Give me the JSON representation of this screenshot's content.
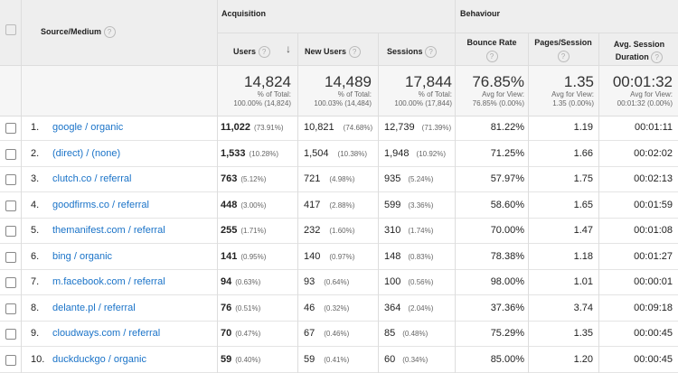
{
  "header": {
    "source_medium": "Source/Medium",
    "acquisition": "Acquisition",
    "behaviour": "Behaviour",
    "users": "Users",
    "new_users": "New Users",
    "sessions": "Sessions",
    "bounce_rate": "Bounce Rate",
    "pages_session": "Pages/Session",
    "avg_session_duration_line1": "Avg. Session",
    "avg_session_duration_line2": "Duration",
    "help_glyph": "?",
    "sort_glyph": "↓"
  },
  "totals": {
    "users": {
      "value": "14,824",
      "l1": "% of Total:",
      "l2": "100.00% (14,824)"
    },
    "new_users": {
      "value": "14,489",
      "l1": "% of Total:",
      "l2": "100.03% (14,484)"
    },
    "sessions": {
      "value": "17,844",
      "l1": "% of Total:",
      "l2": "100.00% (17,844)"
    },
    "bounce_rate": {
      "value": "76.85%",
      "l1": "Avg for View:",
      "l2": "76.85% (0.00%)"
    },
    "pages_session": {
      "value": "1.35",
      "l1": "Avg for View:",
      "l2": "1.35 (0.00%)"
    },
    "avg_duration": {
      "value": "00:01:32",
      "l1": "Avg for View:",
      "l2": "00:01:32 (0.00%)"
    }
  },
  "rows": [
    {
      "idx": "1.",
      "source": "google / organic",
      "users": "11,022",
      "users_pct": "(73.91%)",
      "new_users": "10,821",
      "new_users_pct": "(74.68%)",
      "sessions": "12,739",
      "sessions_pct": "(71.39%)",
      "bounce": "81.22%",
      "pages": "1.19",
      "duration": "00:01:11"
    },
    {
      "idx": "2.",
      "source": "(direct) / (none)",
      "users": "1,533",
      "users_pct": "(10.28%)",
      "new_users": "1,504",
      "new_users_pct": "(10.38%)",
      "sessions": "1,948",
      "sessions_pct": "(10.92%)",
      "bounce": "71.25%",
      "pages": "1.66",
      "duration": "00:02:02"
    },
    {
      "idx": "3.",
      "source": "clutch.co / referral",
      "users": "763",
      "users_pct": "(5.12%)",
      "new_users": "721",
      "new_users_pct": "(4.98%)",
      "sessions": "935",
      "sessions_pct": "(5.24%)",
      "bounce": "57.97%",
      "pages": "1.75",
      "duration": "00:02:13"
    },
    {
      "idx": "4.",
      "source": "goodfirms.co / referral",
      "users": "448",
      "users_pct": "(3.00%)",
      "new_users": "417",
      "new_users_pct": "(2.88%)",
      "sessions": "599",
      "sessions_pct": "(3.36%)",
      "bounce": "58.60%",
      "pages": "1.65",
      "duration": "00:01:59"
    },
    {
      "idx": "5.",
      "source": "themanifest.com / referral",
      "users": "255",
      "users_pct": "(1.71%)",
      "new_users": "232",
      "new_users_pct": "(1.60%)",
      "sessions": "310",
      "sessions_pct": "(1.74%)",
      "bounce": "70.00%",
      "pages": "1.47",
      "duration": "00:01:08"
    },
    {
      "idx": "6.",
      "source": "bing / organic",
      "users": "141",
      "users_pct": "(0.95%)",
      "new_users": "140",
      "new_users_pct": "(0.97%)",
      "sessions": "148",
      "sessions_pct": "(0.83%)",
      "bounce": "78.38%",
      "pages": "1.18",
      "duration": "00:01:27"
    },
    {
      "idx": "7.",
      "source": "m.facebook.com / referral",
      "users": "94",
      "users_pct": "(0.63%)",
      "new_users": "93",
      "new_users_pct": "(0.64%)",
      "sessions": "100",
      "sessions_pct": "(0.56%)",
      "bounce": "98.00%",
      "pages": "1.01",
      "duration": "00:00:01"
    },
    {
      "idx": "8.",
      "source": "delante.pl / referral",
      "users": "76",
      "users_pct": "(0.51%)",
      "new_users": "46",
      "new_users_pct": "(0.32%)",
      "sessions": "364",
      "sessions_pct": "(2.04%)",
      "bounce": "37.36%",
      "pages": "3.74",
      "duration": "00:09:18"
    },
    {
      "idx": "9.",
      "source": "cloudways.com / referral",
      "users": "70",
      "users_pct": "(0.47%)",
      "new_users": "67",
      "new_users_pct": "(0.46%)",
      "sessions": "85",
      "sessions_pct": "(0.48%)",
      "bounce": "75.29%",
      "pages": "1.35",
      "duration": "00:00:45"
    },
    {
      "idx": "10.",
      "source": "duckduckgo / organic",
      "users": "59",
      "users_pct": "(0.40%)",
      "new_users": "59",
      "new_users_pct": "(0.41%)",
      "sessions": "60",
      "sessions_pct": "(0.34%)",
      "bounce": "85.00%",
      "pages": "1.20",
      "duration": "00:00:45"
    }
  ]
}
